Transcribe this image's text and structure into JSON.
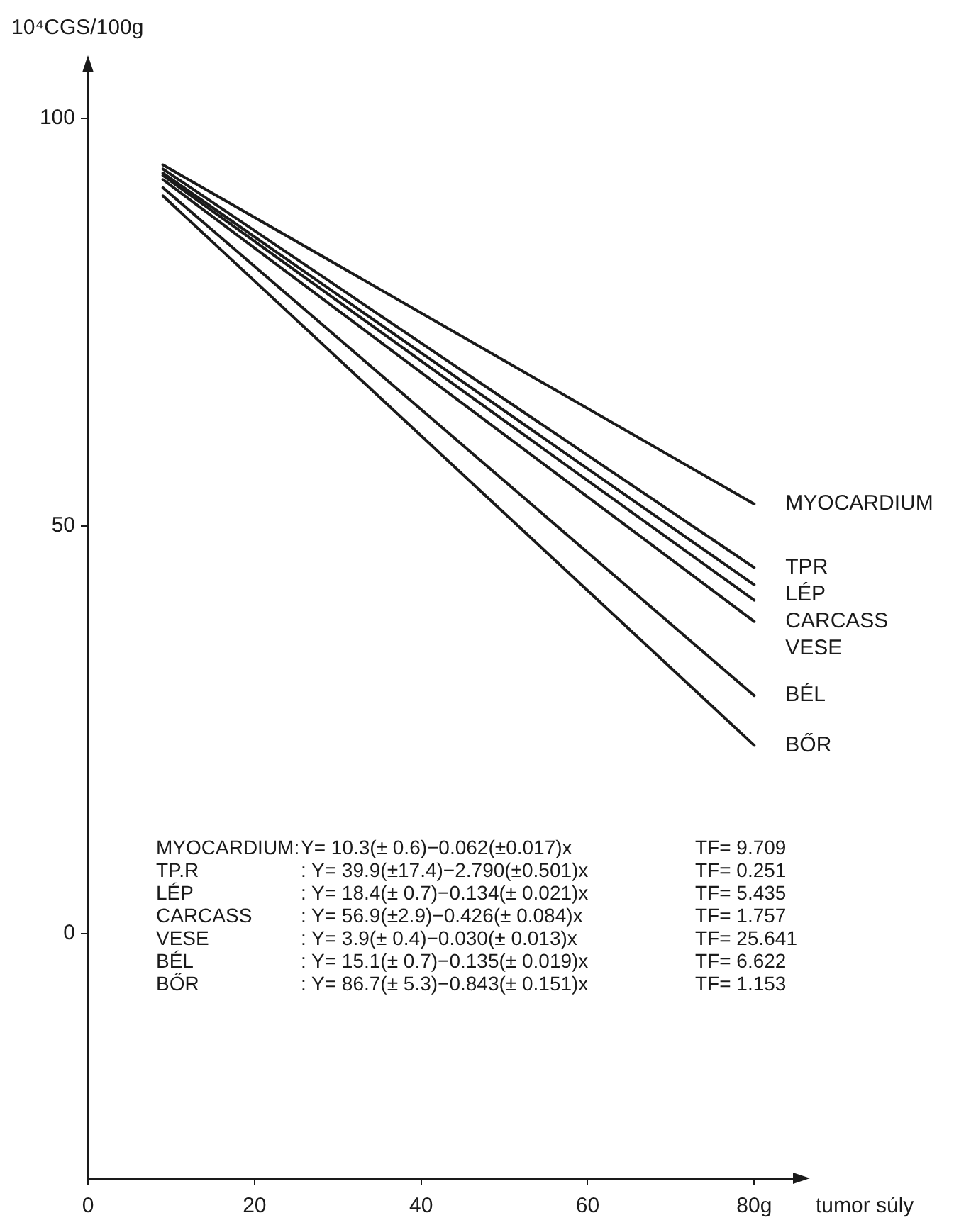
{
  "chart_data": {
    "type": "line",
    "ylabel": "10⁴CGS/100g",
    "xlabel": "tumor súly",
    "xlim": [
      0,
      85
    ],
    "xticks": [
      0,
      20,
      40,
      60,
      {
        "value": 80,
        "label": "80g"
      }
    ],
    "ylim": [
      -30,
      106
    ],
    "yticks": [
      0,
      50,
      100
    ],
    "grid": false,
    "legend": false,
    "marker": "none",
    "line_style": "solid",
    "x": [
      9,
      80
    ],
    "series": [
      {
        "name": "MYOCARDIUM",
        "color": "#1a1a1a",
        "values": [
          94.3,
          52.7
        ]
      },
      {
        "name": "TPR",
        "color": "#1a1a1a",
        "values": [
          93.8,
          44.9
        ]
      },
      {
        "name": "LÉP",
        "color": "#1a1a1a",
        "values": [
          93.3,
          42.8
        ]
      },
      {
        "name": "CARCASS",
        "color": "#1a1a1a",
        "values": [
          93.0,
          40.9
        ]
      },
      {
        "name": "VESE",
        "color": "#1a1a1a",
        "values": [
          92.5,
          38.3
        ]
      },
      {
        "name": "BÉL",
        "color": "#1a1a1a",
        "values": [
          91.5,
          29.2
        ]
      },
      {
        "name": "BŐR",
        "color": "#1a1a1a",
        "values": [
          90.5,
          23.1
        ]
      }
    ],
    "annotations": [
      "MYOCARDIUM:",
      "Y= 10.3(± 0.6)−0.062(±0.017)x",
      "TF= 9.709",
      "TP.R",
      ": Y= 39.9(±17.4)−2.790(±0.501)x",
      "TF= 0.251",
      "LÉP",
      ": Y= 18.4(± 0.7)−0.134(± 0.021)x",
      "TF= 5.435",
      "CARCASS",
      ": Y= 56.9(±2.9)−0.426(± 0.084)x",
      "TF= 1.757",
      "VESE",
      ": Y= 3.9(± 0.4)−0.030(± 0.013)x",
      "TF= 25.641",
      "BÉL",
      ": Y= 15.1(± 0.7)−0.135(± 0.019)x",
      "TF= 6.622",
      "BŐR",
      ": Y= 86.7(± 5.3)−0.843(± 0.151)x",
      "TF= 1.153"
    ]
  }
}
